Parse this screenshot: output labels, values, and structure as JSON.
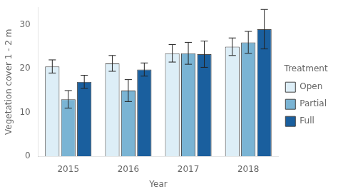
{
  "chart_data": {
    "type": "bar",
    "categories": [
      "2015",
      "2016",
      "2017",
      "2018"
    ],
    "series": [
      {
        "name": "Open",
        "color": "#ddeef7",
        "values": [
          20.5,
          21.2,
          23.5,
          25.0
        ],
        "errors": [
          1.5,
          1.8,
          2.0,
          2.0
        ]
      },
      {
        "name": "Partial",
        "color": "#7ab4d4",
        "values": [
          13.0,
          15.0,
          23.5,
          26.0
        ],
        "errors": [
          2.0,
          2.5,
          2.5,
          2.5
        ]
      },
      {
        "name": "Full",
        "color": "#1a5f9e",
        "values": [
          17.0,
          19.8,
          23.3,
          29.0
        ],
        "errors": [
          1.5,
          1.5,
          3.0,
          4.5
        ]
      }
    ],
    "xlabel": "Year",
    "ylabel": "Vegetation cover 1 - 2 m",
    "legend_title": "Treatment",
    "legend": "right",
    "ylim": [
      0,
      34
    ],
    "yticks": [
      0,
      10,
      20,
      30
    ],
    "grid": false
  }
}
